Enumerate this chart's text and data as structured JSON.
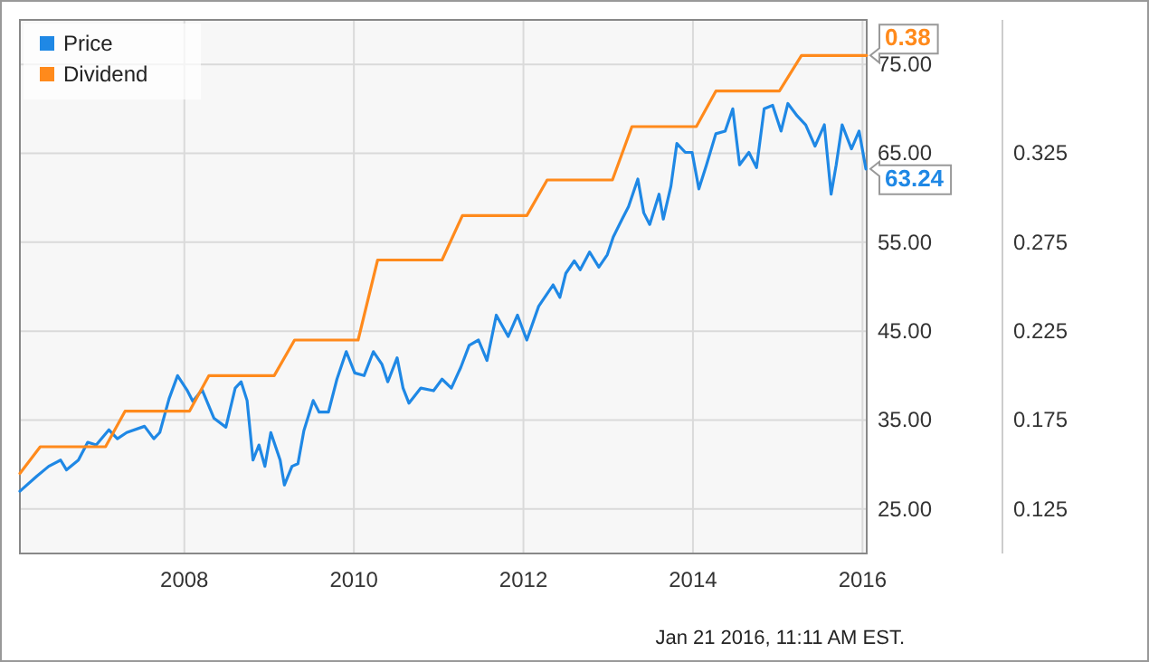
{
  "chart_data": {
    "type": "line",
    "xlim": [
      2006.06,
      2016.05
    ],
    "xticks": [
      2008,
      2010,
      2012,
      2014,
      2016
    ],
    "ylim": [
      20,
      80
    ],
    "yticks": [
      {
        "value": 25,
        "label": "25.00"
      },
      {
        "value": 35,
        "label": "35.00"
      },
      {
        "value": 45,
        "label": "45.00"
      },
      {
        "value": 55,
        "label": "55.00"
      },
      {
        "value": 65,
        "label": "65.00"
      },
      {
        "value": 75,
        "label": "75.00"
      }
    ],
    "y2lim": [
      0.1,
      0.4
    ],
    "y2ticks": [
      0.125,
      0.175,
      0.225,
      0.275,
      0.325
    ],
    "grid": true,
    "legend": "top left",
    "annotations": [
      "Jan 21 2016, 11:11 AM EST."
    ],
    "series": [
      {
        "name": "Price",
        "color": "#1f88e5",
        "x": [
          2006.06,
          2006.26,
          2006.4,
          2006.54,
          2006.61,
          2006.75,
          2006.86,
          2006.96,
          2007.11,
          2007.21,
          2007.32,
          2007.53,
          2007.64,
          2007.71,
          2007.82,
          2007.92,
          2008.03,
          2008.1,
          2008.21,
          2008.35,
          2008.49,
          2008.6,
          2008.67,
          2008.74,
          2008.81,
          2008.88,
          2008.95,
          2009.02,
          2009.13,
          2009.18,
          2009.27,
          2009.34,
          2009.41,
          2009.52,
          2009.59,
          2009.7,
          2009.8,
          2009.91,
          2010.01,
          2010.12,
          2010.23,
          2010.33,
          2010.4,
          2010.51,
          2010.58,
          2010.65,
          2010.79,
          2010.94,
          2011.04,
          2011.15,
          2011.26,
          2011.36,
          2011.47,
          2011.57,
          2011.68,
          2011.82,
          2011.93,
          2012.04,
          2012.18,
          2012.35,
          2012.43,
          2012.5,
          2012.6,
          2012.67,
          2012.78,
          2012.89,
          2012.99,
          2013.06,
          2013.17,
          2013.24,
          2013.35,
          2013.42,
          2013.49,
          2013.6,
          2013.65,
          2013.74,
          2013.81,
          2013.91,
          2013.99,
          2014.07,
          2014.16,
          2014.27,
          2014.38,
          2014.47,
          2014.55,
          2014.66,
          2014.75,
          2014.84,
          2014.94,
          2015.04,
          2015.12,
          2015.23,
          2015.33,
          2015.44,
          2015.55,
          2015.63,
          2015.69,
          2015.76,
          2015.87,
          2015.96,
          2016.04
        ],
        "values": [
          27.0,
          28.7,
          29.8,
          30.5,
          29.4,
          30.5,
          32.5,
          32.2,
          33.9,
          32.9,
          33.6,
          34.3,
          32.9,
          33.6,
          37.4,
          40.0,
          38.4,
          37.1,
          38.4,
          35.2,
          34.2,
          38.6,
          39.3,
          37.2,
          30.5,
          32.2,
          29.8,
          33.6,
          30.5,
          27.7,
          29.8,
          30.1,
          33.8,
          37.2,
          35.9,
          35.9,
          39.6,
          42.7,
          40.3,
          40.0,
          42.7,
          41.3,
          39.3,
          42.0,
          38.6,
          36.9,
          38.6,
          38.3,
          39.6,
          38.6,
          40.9,
          43.4,
          44.0,
          41.7,
          46.8,
          44.4,
          46.8,
          44.0,
          47.8,
          50.2,
          48.8,
          51.5,
          52.9,
          51.9,
          53.9,
          52.2,
          53.6,
          55.6,
          57.7,
          59.0,
          62.1,
          58.3,
          57.0,
          60.4,
          57.6,
          61.3,
          66.1,
          65.1,
          65.1,
          61.0,
          63.7,
          67.2,
          67.5,
          70.0,
          63.7,
          65.1,
          63.4,
          70.0,
          70.4,
          67.5,
          70.6,
          69.2,
          68.2,
          65.8,
          68.2,
          60.4,
          63.7,
          68.2,
          65.5,
          67.5,
          63.24
        ],
        "value_labels": [
          null,
          null,
          null,
          null,
          null,
          null,
          null,
          null,
          null,
          null,
          null,
          null,
          null,
          null,
          null,
          null,
          null,
          null,
          null,
          null,
          null,
          null,
          null,
          null,
          null,
          null,
          null,
          null,
          null,
          null,
          null,
          null,
          null,
          null,
          null,
          null,
          null,
          null,
          null,
          null,
          null,
          null,
          null,
          null,
          null,
          null,
          null,
          null,
          null,
          null,
          null,
          null,
          null,
          null,
          null,
          null,
          null,
          null,
          null,
          null,
          null,
          null,
          null,
          null,
          null,
          null,
          null,
          null,
          null,
          null,
          null,
          null,
          null,
          null,
          null,
          null,
          null,
          null,
          null,
          null,
          null,
          null,
          null,
          null,
          null,
          null,
          null,
          null,
          null,
          null,
          null,
          null,
          null,
          null,
          null,
          null,
          null,
          null,
          null,
          null,
          "63.24"
        ]
      },
      {
        "name": "Dividend",
        "color": "#ff8a1c",
        "axis": "y2",
        "x": [
          2006.06,
          2006.3,
          2007.07,
          2007.3,
          2008.06,
          2008.29,
          2009.06,
          2009.3,
          2010.05,
          2010.28,
          2011.04,
          2011.28,
          2012.04,
          2012.28,
          2013.05,
          2013.28,
          2014.04,
          2014.27,
          2015.02,
          2015.28,
          2016.05
        ],
        "values": [
          0.145,
          0.16,
          0.16,
          0.18,
          0.18,
          0.2,
          0.2,
          0.22,
          0.22,
          0.265,
          0.265,
          0.29,
          0.29,
          0.31,
          0.31,
          0.34,
          0.34,
          0.36,
          0.36,
          0.38,
          0.38
        ],
        "value_labels": [
          null,
          null,
          null,
          null,
          null,
          null,
          null,
          null,
          null,
          null,
          null,
          null,
          null,
          null,
          null,
          null,
          null,
          null,
          null,
          null,
          "0.38"
        ]
      }
    ]
  }
}
